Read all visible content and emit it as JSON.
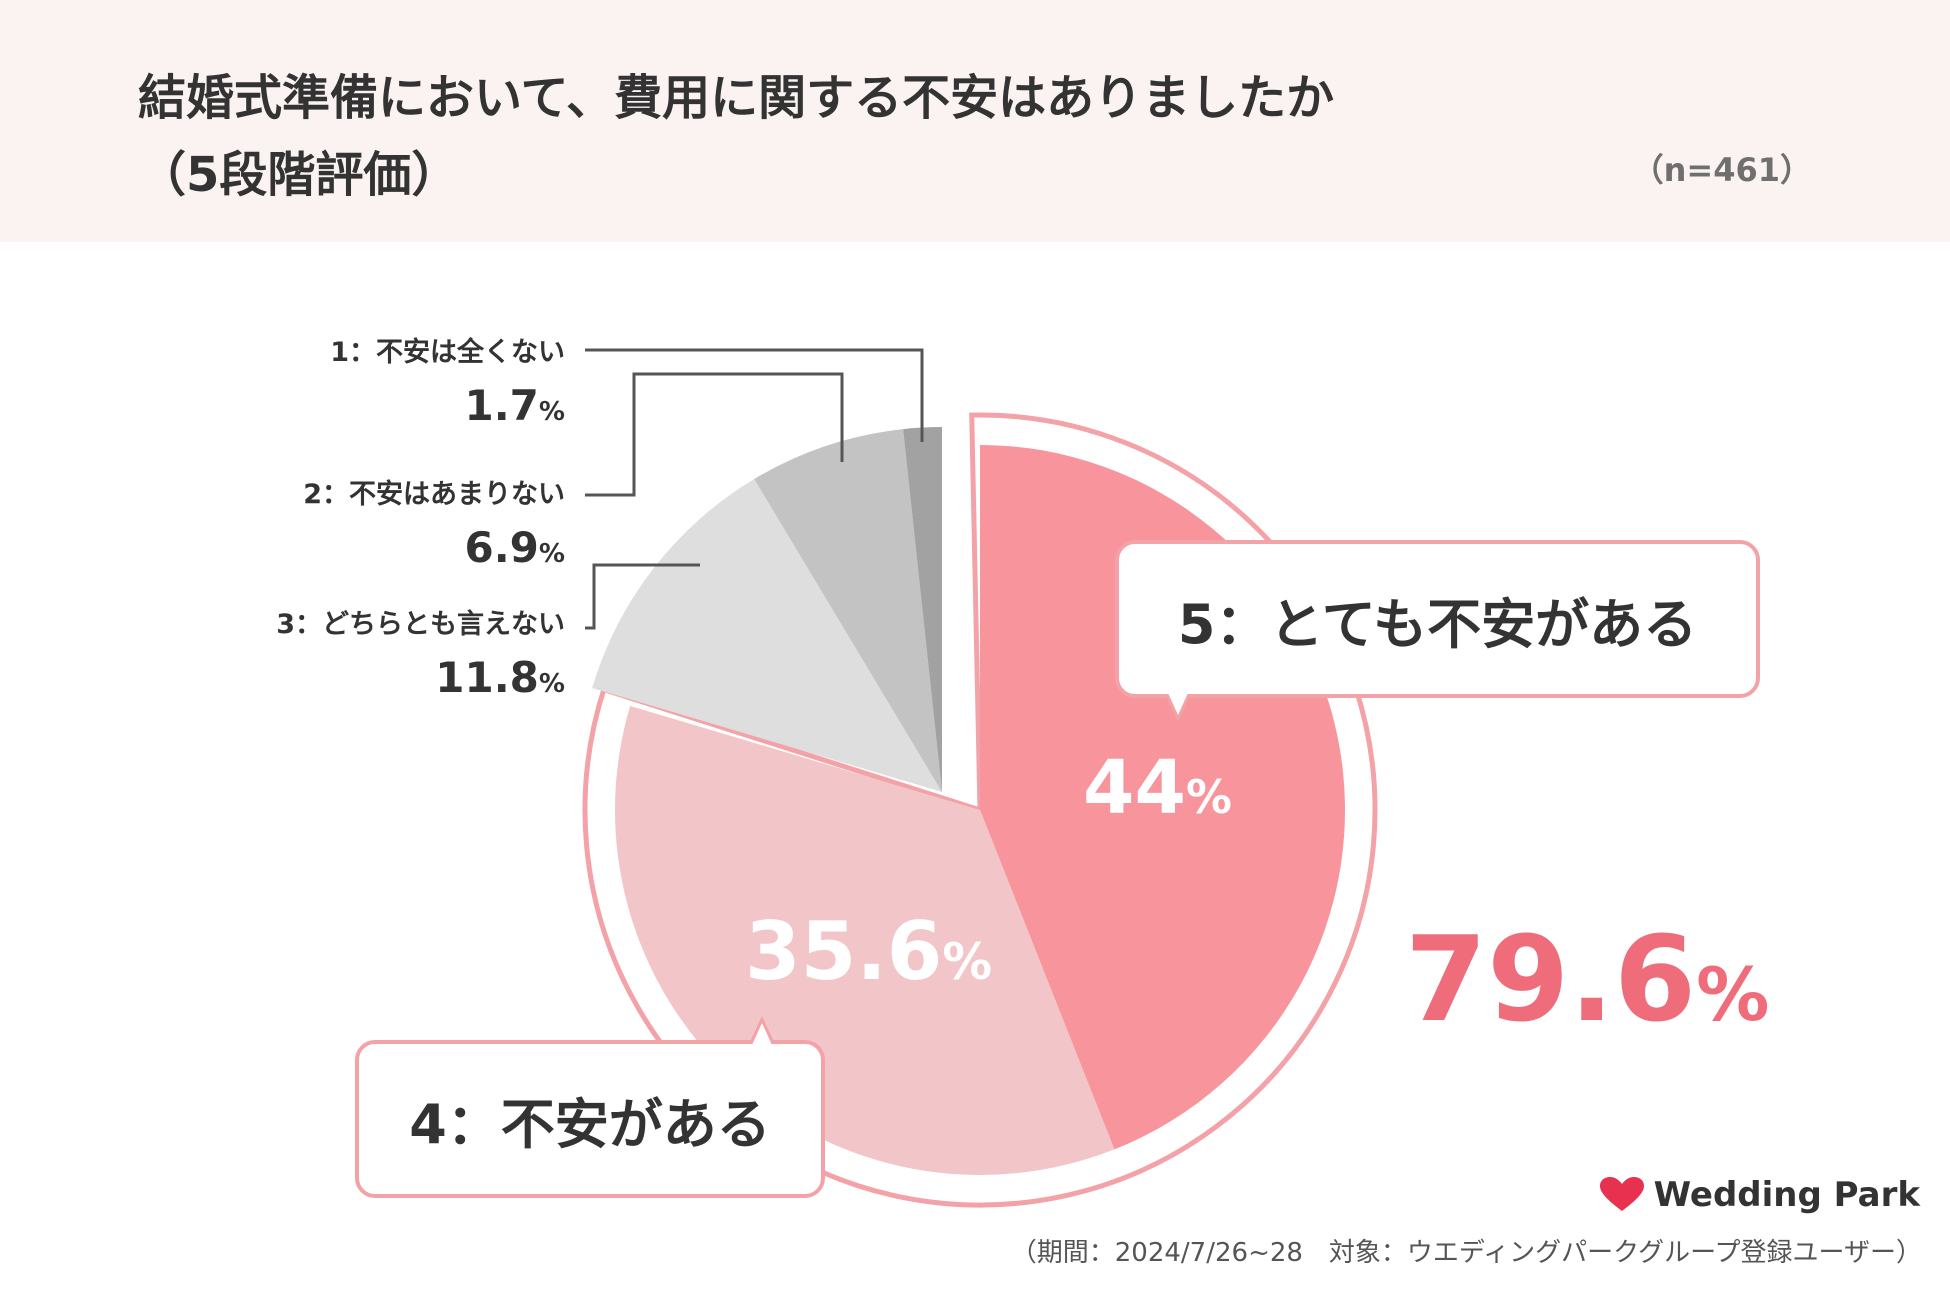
{
  "header": {
    "title_line1": "結婚式準備において、費用に関する不安はありましたか",
    "title_line2": "（5段階評価）",
    "sample_size": "（n=461）"
  },
  "chart_data": {
    "type": "pie",
    "title": "結婚式準備において、費用に関する不安はありましたか（5段階評価）",
    "slices": [
      {
        "label": "5：とても不安がある",
        "value": 44.0,
        "value_text": "44",
        "color": "#f8949c"
      },
      {
        "label": "4：不安がある",
        "value": 35.6,
        "value_text": "35.6",
        "color": "#f2c5c8"
      },
      {
        "label": "3：どちらとも言えない",
        "value": 11.8,
        "value_text": "11.8",
        "color": "#dedede"
      },
      {
        "label": "2：不安はあまりない",
        "value": 6.9,
        "value_text": "6.9",
        "color": "#c3c3c3"
      },
      {
        "label": "1：不安は全くない",
        "value": 1.7,
        "value_text": "1.7",
        "color": "#a2a2a2"
      }
    ],
    "percent_unit": "%",
    "highlight_total": {
      "value": 79.6,
      "value_text": "79.6",
      "color": "#ef6d7b",
      "covers": [
        "5：とても不安がある",
        "4：不安がある"
      ]
    },
    "outline_color": "#f3a2a7"
  },
  "footer": {
    "brand": "Wedding Park",
    "note": "（期間：2024/7/26~28　対象：ウエディングパークグループ登録ユーザー）"
  }
}
